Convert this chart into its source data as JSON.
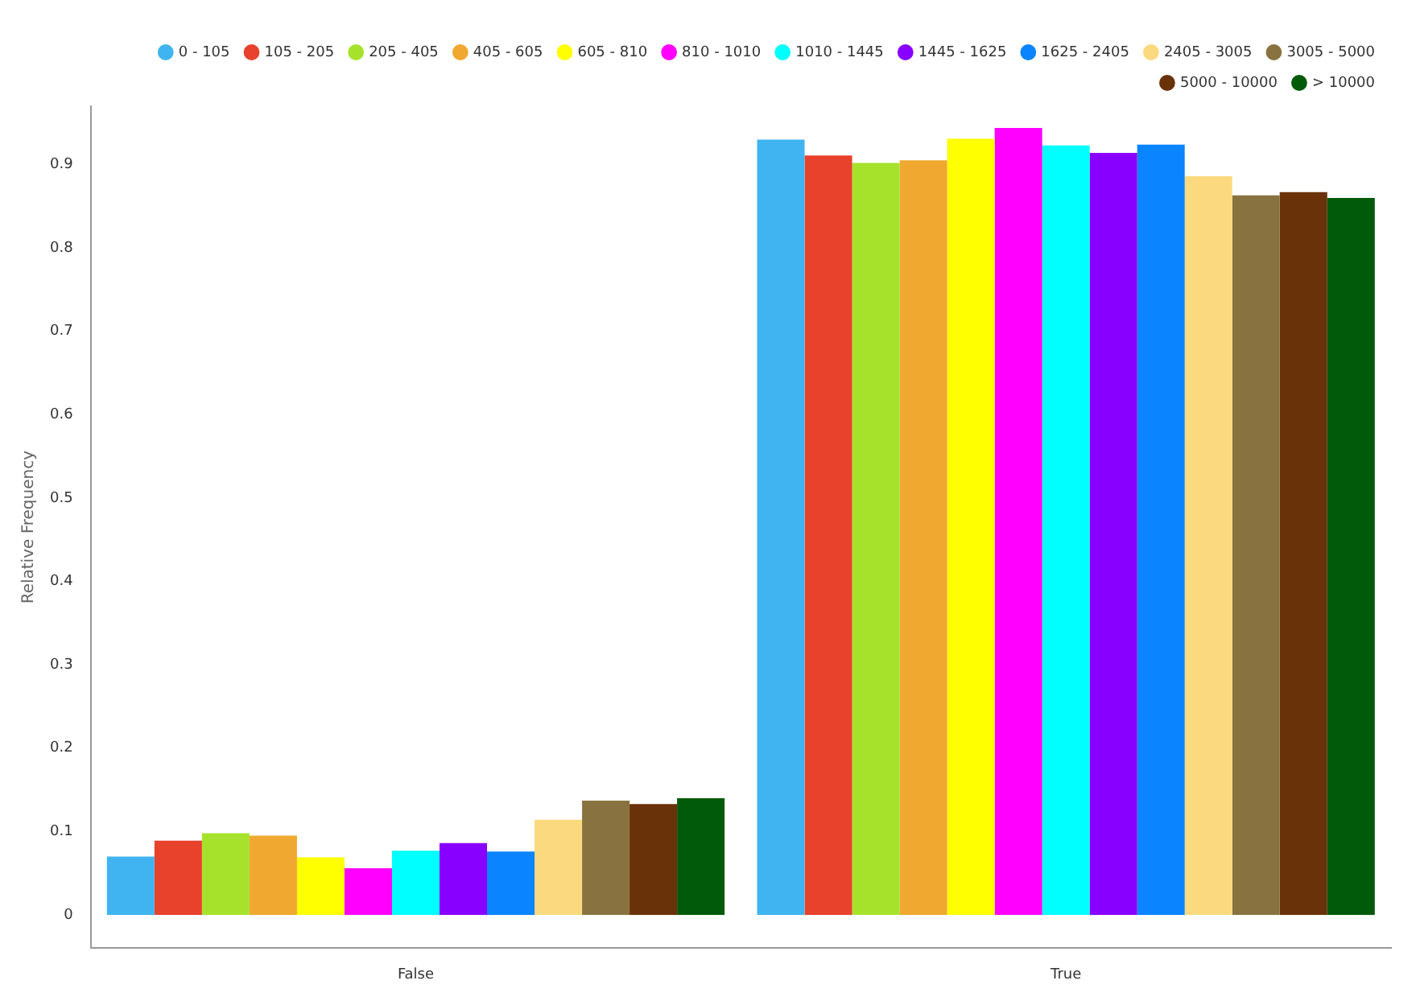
{
  "chart_data": {
    "type": "bar",
    "ylabel": "Relative Frequency",
    "categories": [
      "False",
      "True"
    ],
    "ylim": [
      -0.04,
      0.97
    ],
    "yticks": [
      0,
      0.1,
      0.2,
      0.3,
      0.4,
      0.5,
      0.6,
      0.7,
      0.8,
      0.9
    ],
    "grid": false,
    "legend": "top right",
    "marker": "circle",
    "series": [
      {
        "name": "0 - 105",
        "color": "#3fb4f0",
        "values": [
          0.07,
          0.93
        ]
      },
      {
        "name": "105 - 205",
        "color": "#e8412c",
        "values": [
          0.089,
          0.911
        ]
      },
      {
        "name": "205 - 405",
        "color": "#a6e22c",
        "values": [
          0.098,
          0.902
        ]
      },
      {
        "name": "405 - 605",
        "color": "#f0a830",
        "values": [
          0.095,
          0.905
        ]
      },
      {
        "name": "605 - 810",
        "color": "#ffff00",
        "values": [
          0.069,
          0.931
        ]
      },
      {
        "name": "810 - 1010",
        "color": "#ff00ff",
        "values": [
          0.056,
          0.944
        ]
      },
      {
        "name": "1010 - 1445",
        "color": "#00ffff",
        "values": [
          0.077,
          0.923
        ]
      },
      {
        "name": "1445 - 1625",
        "color": "#8800ff",
        "values": [
          0.086,
          0.914
        ]
      },
      {
        "name": "1625 - 2405",
        "color": "#0a84ff",
        "values": [
          0.076,
          0.924
        ]
      },
      {
        "name": "2405 - 3005",
        "color": "#fbd97e",
        "values": [
          0.114,
          0.886
        ]
      },
      {
        "name": "3005 - 5000",
        "color": "#887340",
        "values": [
          0.137,
          0.863
        ]
      },
      {
        "name": "5000 - 10000",
        "color": "#6a3208",
        "values": [
          0.133,
          0.867
        ]
      },
      {
        "name": "> 10000",
        "color": "#005a0a",
        "values": [
          0.14,
          0.86
        ]
      }
    ]
  }
}
